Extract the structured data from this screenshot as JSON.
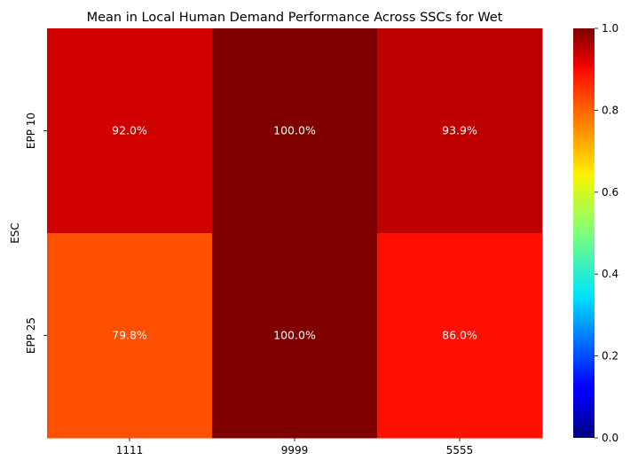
{
  "chart_data": {
    "type": "heatmap",
    "title": "Mean in Local Human Demand Performance Across SSCs for Wet",
    "xlabel": "",
    "ylabel": "ESC",
    "x_categories": [
      "1111",
      "9999",
      "5555"
    ],
    "y_categories": [
      "EPP 10",
      "EPP 25"
    ],
    "values": [
      [
        0.92,
        1.0,
        0.939
      ],
      [
        0.798,
        1.0,
        0.86
      ]
    ],
    "cell_labels": [
      [
        "92.0%",
        "100.0%",
        "93.9%"
      ],
      [
        "79.8%",
        "100.0%",
        "86.0%"
      ]
    ],
    "colorscale": "jet",
    "colorbar": {
      "range": [
        0,
        1
      ],
      "ticks": [
        0.0,
        0.2,
        0.4,
        0.6,
        0.8,
        1.0
      ],
      "tick_labels": [
        "0.0",
        "0.2",
        "0.4",
        "0.6",
        "0.8",
        "1.0"
      ]
    },
    "grid": false,
    "legend": "none"
  }
}
